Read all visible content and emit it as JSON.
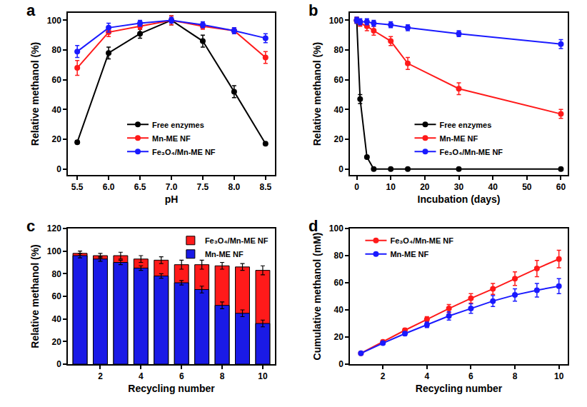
{
  "chart_data": [
    {
      "type": "line",
      "title": "a",
      "x_label": "pH",
      "y_label": "Relative methanol (%)",
      "x": [
        5.5,
        6.0,
        6.5,
        7.0,
        7.5,
        8.0,
        8.5
      ],
      "xlim": [
        5.35,
        8.65
      ],
      "xticks": [
        5.5,
        {
          "value": 6,
          "label": "6.0"
        },
        6.5,
        {
          "value": 7,
          "label": "7.0"
        },
        7.5,
        {
          "value": 8,
          "label": "8.0"
        },
        8.5
      ],
      "ylim": [
        -4,
        105
      ],
      "yticks": [
        0,
        20,
        40,
        60,
        80,
        100
      ],
      "grid": false,
      "legend": "lower center",
      "marker": "circle",
      "series": [
        {
          "name": "Free enzymes",
          "color": "#000000",
          "values": [
            18,
            78,
            91,
            100,
            86,
            52,
            17
          ],
          "errors": [
            1,
            4,
            3,
            3,
            4,
            4,
            1
          ]
        },
        {
          "name": "Mn-ME NF",
          "color": "#ff1a1a",
          "values": [
            68,
            92,
            96,
            100,
            96,
            93,
            75
          ],
          "errors": [
            5,
            3,
            2,
            3,
            2,
            2,
            4
          ]
        },
        {
          "name": "Fe₃O₄/Mn-ME NF",
          "color": "#1a1aff",
          "values": [
            79,
            95,
            98,
            100,
            97,
            93,
            88
          ],
          "errors": [
            4,
            3,
            2,
            2,
            2,
            2,
            3
          ]
        }
      ]
    },
    {
      "type": "line",
      "title": "b",
      "x_label": "Incubation (days)",
      "y_label": "Relative methanol (%)",
      "x": [
        0,
        1,
        3,
        5,
        10,
        15,
        30,
        60
      ],
      "xlim": [
        -2,
        62
      ],
      "xticks": [
        0,
        10,
        20,
        30,
        40,
        50,
        60
      ],
      "ylim": [
        -4,
        105
      ],
      "yticks": [
        0,
        20,
        40,
        60,
        80,
        100
      ],
      "grid": false,
      "legend": "lower center",
      "marker": "circle",
      "series": [
        {
          "name": "Free enzymes",
          "color": "#000000",
          "values": [
            100,
            47,
            8,
            0,
            0,
            0,
            0,
            0
          ],
          "errors": [
            2,
            3,
            0,
            0,
            0,
            0,
            0,
            0
          ]
        },
        {
          "name": "Mn-ME NF",
          "color": "#ff1a1a",
          "values": [
            100,
            98,
            96,
            93,
            86,
            71,
            54,
            37
          ],
          "errors": [
            2,
            2,
            3,
            3,
            3,
            4,
            4,
            3
          ]
        },
        {
          "name": "Fe₃O₄/Mn-ME NF",
          "color": "#1a1aff",
          "values": [
            100,
            99,
            99,
            98,
            97,
            95,
            91,
            84
          ],
          "errors": [
            2,
            2,
            2,
            2,
            2,
            2,
            2,
            3
          ]
        }
      ]
    },
    {
      "type": "bar",
      "title": "c",
      "x_label": "Recycling number",
      "y_label": "Relative methanol (%)",
      "x": [
        1,
        2,
        3,
        4,
        5,
        6,
        7,
        8,
        9,
        10
      ],
      "xlim": [
        0.4,
        10.6
      ],
      "xticks": [
        2,
        4,
        6,
        8,
        10
      ],
      "ylim": [
        0,
        120
      ],
      "yticks": [
        0,
        20,
        40,
        60,
        80,
        100,
        120
      ],
      "grid": false,
      "legend": "upper right",
      "stacked": false,
      "series": [
        {
          "name": "Fe₃O₄/Mn-ME NF",
          "color": "#ff1a1a",
          "values": [
            98,
            96,
            96,
            93,
            92,
            88,
            88,
            87,
            86,
            83
          ],
          "errors": [
            2,
            2,
            3,
            3,
            3,
            4,
            4,
            3,
            3,
            4
          ]
        },
        {
          "name": "Mn-ME NF",
          "color": "#1a1ae6",
          "values": [
            96,
            93,
            90,
            85,
            78,
            72,
            66,
            52,
            45,
            36
          ],
          "errors": [
            2,
            2,
            2,
            2,
            2,
            2,
            3,
            3,
            3,
            3
          ]
        }
      ]
    },
    {
      "type": "line",
      "title": "d",
      "x_label": "Recycling number",
      "y_label": "Cumulative methanol (mM)",
      "x": [
        1,
        2,
        3,
        4,
        5,
        6,
        7,
        8,
        9,
        10
      ],
      "xlim": [
        0.5,
        10.4
      ],
      "xticks": [
        2,
        4,
        6,
        8,
        10
      ],
      "ylim": [
        0,
        100
      ],
      "yticks": [
        0,
        20,
        40,
        60,
        80,
        100
      ],
      "grid": false,
      "legend": "upper left",
      "marker": "circle",
      "series": [
        {
          "name": "Fe₃O₄/Mn-ME NF",
          "color": "#ff1a1a",
          "values": [
            8,
            16.5,
            25,
            33,
            41,
            48.5,
            55.5,
            63,
            70.5,
            77.5
          ],
          "errors": [
            0.5,
            1,
            1.5,
            2,
            3,
            3.5,
            4,
            5,
            6,
            6.5
          ]
        },
        {
          "name": "Mn-ME NF",
          "color": "#1a1aff",
          "values": [
            8,
            15.5,
            22.5,
            29,
            35.5,
            41,
            46.5,
            51,
            54.5,
            57.5
          ],
          "errors": [
            0.5,
            1,
            1.5,
            2,
            3,
            3.5,
            4,
            4.5,
            5,
            5.5
          ]
        }
      ]
    }
  ]
}
